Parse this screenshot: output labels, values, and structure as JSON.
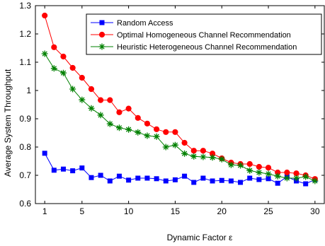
{
  "chart_data": {
    "type": "line",
    "xlabel": "Dynamic Factor ε",
    "ylabel": "Average System Throughput",
    "xlim": [
      0,
      31
    ],
    "ylim": [
      0.6,
      1.3
    ],
    "xticks": [
      1,
      5,
      10,
      15,
      20,
      25,
      30
    ],
    "yticks": [
      0.6,
      0.7,
      0.8,
      0.9,
      1,
      1.1,
      1.2,
      1.3
    ],
    "ytick_labels": [
      "0.6",
      "0.7",
      "0.8",
      "0.9",
      "1",
      "1.1",
      "1.2",
      "1.3"
    ],
    "grid": false,
    "legend_position": "top-right",
    "x": [
      1,
      2,
      3,
      4,
      5,
      6,
      7,
      8,
      9,
      10,
      11,
      12,
      13,
      14,
      15,
      16,
      17,
      18,
      19,
      20,
      21,
      22,
      23,
      24,
      25,
      26,
      27,
      28,
      29,
      30
    ],
    "series": [
      {
        "name": "Random Access",
        "color": "#0000ff",
        "marker": "square",
        "values": [
          0.778,
          0.718,
          0.722,
          0.716,
          0.726,
          0.692,
          0.7,
          0.68,
          0.697,
          0.683,
          0.69,
          0.69,
          0.688,
          0.68,
          0.684,
          0.697,
          0.675,
          0.69,
          0.68,
          0.682,
          0.68,
          0.675,
          0.69,
          0.685,
          0.688,
          0.672,
          0.695,
          0.68,
          0.67,
          0.685
        ]
      },
      {
        "name": "Optimal Homogeneous Channel Recommendation",
        "color": "#ff0000",
        "marker": "circle",
        "values": [
          1.265,
          1.153,
          1.12,
          1.08,
          1.045,
          1.005,
          0.966,
          0.966,
          0.923,
          0.936,
          0.903,
          0.883,
          0.863,
          0.853,
          0.853,
          0.815,
          0.787,
          0.787,
          0.777,
          0.76,
          0.745,
          0.74,
          0.74,
          0.73,
          0.727,
          0.71,
          0.71,
          0.707,
          0.7,
          0.687
        ]
      },
      {
        "name": "Heuristic Heterogeneous Channel Recommendation",
        "color": "#008000",
        "marker": "star",
        "values": [
          1.13,
          1.078,
          1.062,
          1.005,
          0.967,
          0.937,
          0.913,
          0.882,
          0.868,
          0.862,
          0.852,
          0.84,
          0.837,
          0.8,
          0.807,
          0.777,
          0.767,
          0.765,
          0.763,
          0.757,
          0.737,
          0.735,
          0.717,
          0.71,
          0.705,
          0.697,
          0.69,
          0.69,
          0.695,
          0.68
        ]
      }
    ]
  }
}
